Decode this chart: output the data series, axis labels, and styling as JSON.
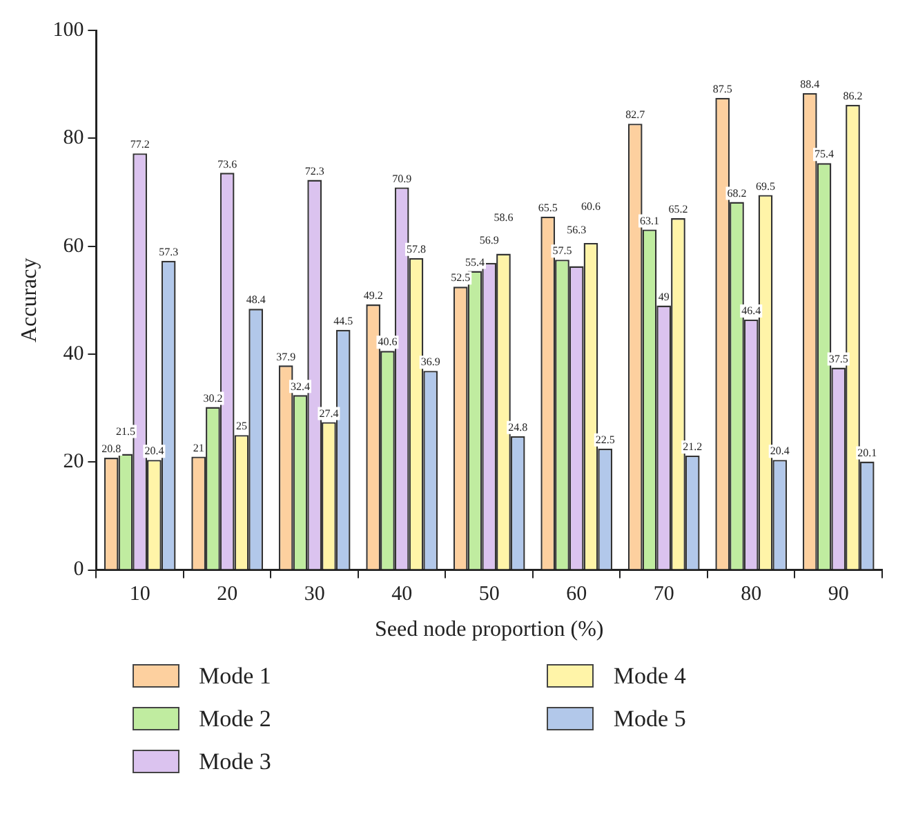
{
  "chart_data": {
    "type": "bar",
    "xlabel": "Seed node proportion (%)",
    "ylabel": "Accuracy",
    "categories": [
      "10",
      "20",
      "30",
      "40",
      "50",
      "60",
      "70",
      "80",
      "90"
    ],
    "series": [
      {
        "name": "Mode 1",
        "color": "#fdd09f",
        "values": [
          20.8,
          21,
          37.9,
          49.2,
          52.5,
          65.5,
          82.7,
          87.5,
          88.4
        ]
      },
      {
        "name": "Mode 2",
        "color": "#c0eca0",
        "values": [
          21.5,
          30.2,
          32.4,
          40.6,
          55.4,
          57.5,
          63.1,
          68.2,
          75.4
        ]
      },
      {
        "name": "Mode 3",
        "color": "#dbc3ef",
        "values": [
          77.2,
          73.6,
          72.3,
          70.9,
          56.9,
          56.3,
          49,
          46.4,
          37.5
        ]
      },
      {
        "name": "Mode 4",
        "color": "#fff4a8",
        "values": [
          20.4,
          25,
          27.4,
          57.8,
          58.6,
          60.6,
          65.2,
          69.5,
          86.2
        ]
      },
      {
        "name": "Mode 5",
        "color": "#b2c8ea",
        "values": [
          57.3,
          48.4,
          44.5,
          36.9,
          24.8,
          22.5,
          21.2,
          20.4,
          20.1
        ]
      }
    ],
    "ylim": [
      0,
      100
    ],
    "yticks": [
      0,
      20,
      40,
      60,
      80,
      100
    ],
    "grid": false,
    "legend": "bottom",
    "data_labels": true
  }
}
